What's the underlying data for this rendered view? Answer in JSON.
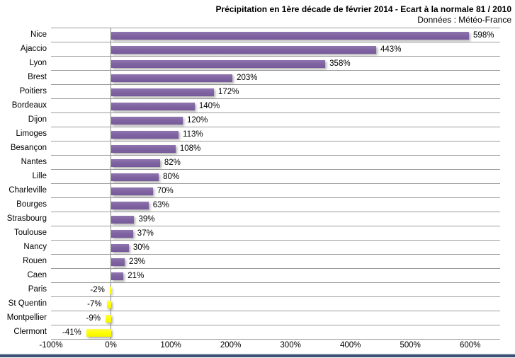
{
  "chart_data": {
    "type": "bar",
    "orientation": "horizontal",
    "title": "Précipitation en 1ère décade de février 2014 - Ecart à la normale 81 / 2010",
    "source": "Données : Météo-France",
    "categories": [
      "Nice",
      "Ajaccio",
      "Lyon",
      "Brest",
      "Poitiers",
      "Bordeaux",
      "Dijon",
      "Limoges",
      "Besançon",
      "Nantes",
      "Lille",
      "Charleville",
      "Bourges",
      "Strasbourg",
      "Toulouse",
      "Nancy",
      "Rouen",
      "Caen",
      "Paris",
      "St Quentin",
      "Montpellier",
      "Clermont"
    ],
    "values": [
      598,
      443,
      358,
      203,
      172,
      140,
      120,
      113,
      108,
      82,
      80,
      70,
      63,
      39,
      37,
      30,
      23,
      21,
      -2,
      -7,
      -9,
      -41
    ],
    "labels": [
      "598%",
      "443%",
      "358%",
      "203%",
      "172%",
      "140%",
      "120%",
      "113%",
      "108%",
      "82%",
      "80%",
      "70%",
      "63%",
      "39%",
      "37%",
      "30%",
      "23%",
      "21%",
      "-2%",
      "-7%",
      "-9%",
      "-41%"
    ],
    "xlabel": "",
    "ylabel": "",
    "xlim": [
      -100,
      650
    ],
    "x_ticks": [
      {
        "label": "-100%",
        "value": -100
      },
      {
        "label": "0%",
        "value": 0
      },
      {
        "label": "100%",
        "value": 100
      },
      {
        "label": "200%",
        "value": 200
      },
      {
        "label": "300%",
        "value": 300
      },
      {
        "label": "400%",
        "value": 400
      },
      {
        "label": "500%",
        "value": 500
      },
      {
        "label": "600%",
        "value": 600
      }
    ],
    "legend": "none",
    "gridlines": "horizontal-category-separators",
    "colors": {
      "positive_bar": "#8064A2",
      "negative_bar": "#FFFF00",
      "gridline": "#9C9C9C",
      "zero_axis_line": "#808080",
      "text": "#000000",
      "bottom_border": "#3D5172"
    }
  }
}
